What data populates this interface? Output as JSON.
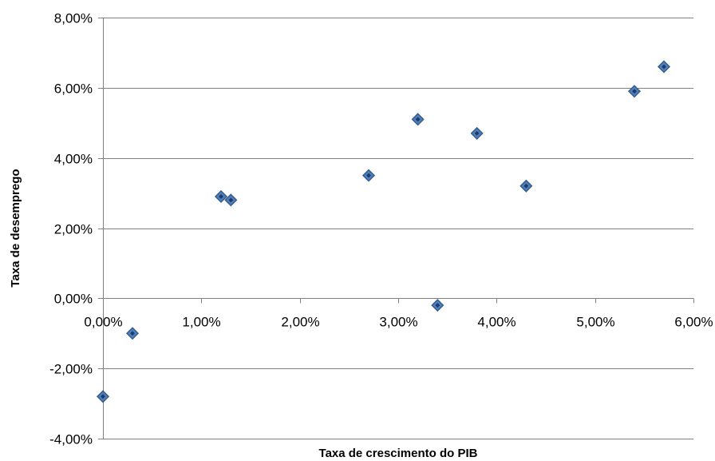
{
  "chart_data": {
    "type": "scatter",
    "title": "",
    "xlabel": "Taxa de crescimento do PIB",
    "ylabel": "Taxa de desemprego",
    "xlim": [
      0,
      0.06
    ],
    "ylim": [
      -0.04,
      0.08
    ],
    "x_ticks": [
      0,
      0.01,
      0.02,
      0.03,
      0.04,
      0.05,
      0.06
    ],
    "x_tick_labels": [
      "0,00%",
      "1,00%",
      "2,00%",
      "3,00%",
      "4,00%",
      "5,00%",
      "6,00%"
    ],
    "y_ticks": [
      -0.04,
      -0.02,
      0,
      0.02,
      0.04,
      0.06,
      0.08
    ],
    "y_tick_labels": [
      "-4,00%",
      "-2,00%",
      "0,00%",
      "2,00%",
      "4,00%",
      "6,00%",
      "8,00%"
    ],
    "grid": "horizontal",
    "legend": "none",
    "marker": "diamond",
    "marker_color": "#4F81BD",
    "marker_edge_color": "#1F3B6E",
    "points": [
      {
        "x": 0.0,
        "y": -0.028
      },
      {
        "x": 0.003,
        "y": -0.01
      },
      {
        "x": 0.012,
        "y": 0.029
      },
      {
        "x": 0.013,
        "y": 0.028
      },
      {
        "x": 0.027,
        "y": 0.035
      },
      {
        "x": 0.032,
        "y": 0.051
      },
      {
        "x": 0.034,
        "y": -0.002
      },
      {
        "x": 0.038,
        "y": 0.047
      },
      {
        "x": 0.043,
        "y": 0.032
      },
      {
        "x": 0.054,
        "y": 0.059
      },
      {
        "x": 0.057,
        "y": 0.066
      }
    ]
  }
}
